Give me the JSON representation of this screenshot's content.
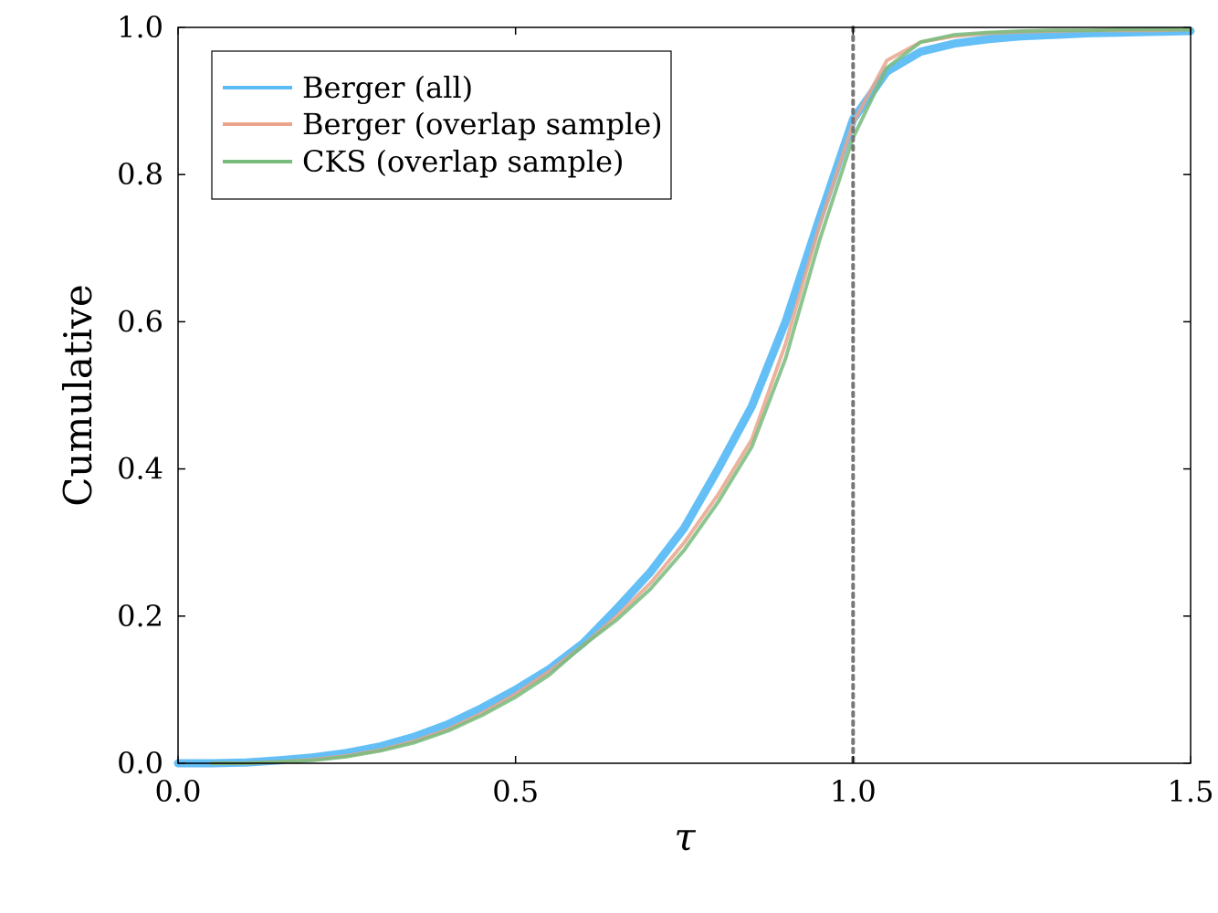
{
  "chart_data": {
    "type": "line",
    "title": "",
    "xlabel": "τ",
    "ylabel": "Cumulative",
    "xlim": [
      0.0,
      1.5
    ],
    "ylim": [
      0.0,
      1.0
    ],
    "x_ticks": [
      0.0,
      0.5,
      1.0,
      1.5
    ],
    "x_tick_labels": [
      "0.0",
      "0.5",
      "1.0",
      "1.5"
    ],
    "y_ticks": [
      0.0,
      0.2,
      0.4,
      0.6,
      0.8,
      1.0
    ],
    "y_tick_labels": [
      "0.0",
      "0.2",
      "0.4",
      "0.6",
      "0.8",
      "1.0"
    ],
    "grid": false,
    "legend_position": "top-left",
    "reference_line": {
      "x": 1.0,
      "style": "dotted",
      "color": "#777777"
    },
    "series": [
      {
        "name": "Berger (all)",
        "color": "#5bbcf5",
        "x": [
          0.0,
          0.05,
          0.1,
          0.15,
          0.2,
          0.25,
          0.3,
          0.35,
          0.4,
          0.45,
          0.5,
          0.55,
          0.6,
          0.65,
          0.7,
          0.75,
          0.8,
          0.85,
          0.9,
          0.95,
          1.0,
          1.05,
          1.1,
          1.15,
          1.2,
          1.25,
          1.3,
          1.35,
          1.4,
          1.45,
          1.5
        ],
        "y": [
          0.0,
          0.0,
          0.001,
          0.004,
          0.008,
          0.014,
          0.023,
          0.036,
          0.053,
          0.075,
          0.1,
          0.128,
          0.163,
          0.21,
          0.26,
          0.32,
          0.4,
          0.485,
          0.6,
          0.74,
          0.875,
          0.94,
          0.967,
          0.978,
          0.984,
          0.988,
          0.99,
          0.992,
          0.993,
          0.994,
          0.995
        ]
      },
      {
        "name": "Berger (overlap sample)",
        "color": "#e8a58c",
        "x": [
          0.05,
          0.1,
          0.15,
          0.2,
          0.25,
          0.3,
          0.35,
          0.4,
          0.45,
          0.5,
          0.55,
          0.6,
          0.65,
          0.7,
          0.75,
          0.8,
          0.85,
          0.9,
          0.95,
          1.0,
          1.05,
          1.1,
          1.15,
          1.2,
          1.25,
          1.3,
          1.35,
          1.4,
          1.45,
          1.5
        ],
        "y": [
          0.0,
          0.0,
          0.002,
          0.005,
          0.01,
          0.018,
          0.03,
          0.046,
          0.068,
          0.094,
          0.125,
          0.16,
          0.2,
          0.245,
          0.3,
          0.365,
          0.44,
          0.57,
          0.73,
          0.87,
          0.955,
          0.98,
          0.988,
          0.992,
          0.994,
          0.995,
          0.996,
          0.996,
          0.996,
          0.997
        ]
      },
      {
        "name": "CKS (overlap sample)",
        "color": "#78bb7d",
        "x": [
          0.05,
          0.1,
          0.15,
          0.2,
          0.25,
          0.3,
          0.35,
          0.4,
          0.45,
          0.5,
          0.55,
          0.6,
          0.65,
          0.7,
          0.75,
          0.8,
          0.85,
          0.9,
          0.95,
          1.0,
          1.05,
          1.1,
          1.15,
          1.2,
          1.25,
          1.3,
          1.35,
          1.4,
          1.45,
          1.5
        ],
        "y": [
          0.0,
          0.0,
          0.002,
          0.004,
          0.009,
          0.017,
          0.028,
          0.044,
          0.065,
          0.09,
          0.12,
          0.16,
          0.195,
          0.237,
          0.29,
          0.355,
          0.43,
          0.55,
          0.71,
          0.85,
          0.945,
          0.98,
          0.99,
          0.993,
          0.995,
          0.996,
          0.996,
          0.997,
          0.997,
          0.997
        ]
      }
    ]
  }
}
